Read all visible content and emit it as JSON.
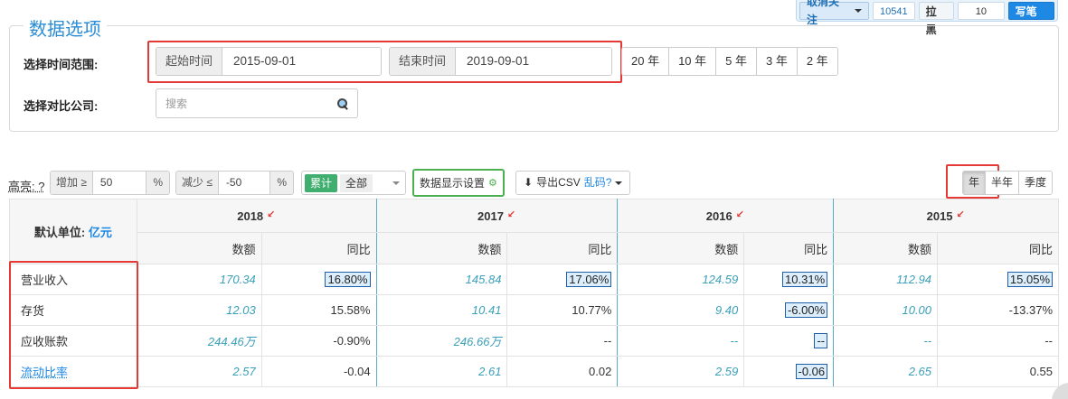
{
  "topbar": {
    "unfollow": "取消关注",
    "count": "10541",
    "blacklist": "拉黑",
    "input_value": "10",
    "note": "写笔记"
  },
  "panel": {
    "legend": "数据选项",
    "time_range_label": "选择时间范围:",
    "start_addon": "起始时间",
    "start_value": "2015-09-01",
    "end_addon": "结束时间",
    "end_value": "2019-09-01",
    "year_buttons": [
      "20 年",
      "10 年",
      "5 年",
      "3 年",
      "2 年"
    ],
    "compare_label": "选择对比公司:",
    "search_placeholder": "搜索"
  },
  "toolbar": {
    "highlight_label": "高亮: ?",
    "increase_addon": "增加 ≥",
    "increase_value": "50",
    "increase_suffix": "%",
    "decrease_addon": "减少 ≤",
    "decrease_value": "-50",
    "decrease_suffix": "%",
    "cumulative": "累计",
    "all": "全部",
    "display_settings": "数据显示设置",
    "export_csv": "导出CSV",
    "garbled": "乱码?",
    "periods": [
      "年",
      "半年",
      "季度"
    ],
    "active_period": "年"
  },
  "table": {
    "unit_label": "默认单位: ",
    "unit_value": "亿元",
    "years": [
      "2018",
      "2017",
      "2016",
      "2015"
    ],
    "sub_headers": {
      "amount": "数额",
      "yoy": "同比"
    },
    "rows": [
      {
        "label": "营业收入",
        "link": false,
        "cells": [
          [
            "170.34",
            "16.80%",
            true
          ],
          [
            "145.84",
            "17.06%",
            true
          ],
          [
            "124.59",
            "10.31%",
            true
          ],
          [
            "112.94",
            "15.05%",
            true
          ]
        ]
      },
      {
        "label": "存货",
        "link": false,
        "cells": [
          [
            "12.03",
            "15.58%",
            false
          ],
          [
            "10.41",
            "10.77%",
            false
          ],
          [
            "9.40",
            "-6.00%",
            true
          ],
          [
            "10.00",
            "-13.37%",
            false
          ]
        ]
      },
      {
        "label": "应收账款",
        "link": false,
        "cells": [
          [
            "244.46万",
            "-0.90%",
            false
          ],
          [
            "246.66万",
            "--",
            false
          ],
          [
            "--",
            "--",
            true
          ],
          [
            "--",
            "--",
            false
          ]
        ]
      },
      {
        "label": "流动比率",
        "link": true,
        "cells": [
          [
            "2.57",
            "-0.04",
            false
          ],
          [
            "2.61",
            "0.02",
            false
          ],
          [
            "2.59",
            "-0.06",
            true
          ],
          [
            "2.65",
            "0.55",
            false
          ]
        ]
      }
    ]
  }
}
